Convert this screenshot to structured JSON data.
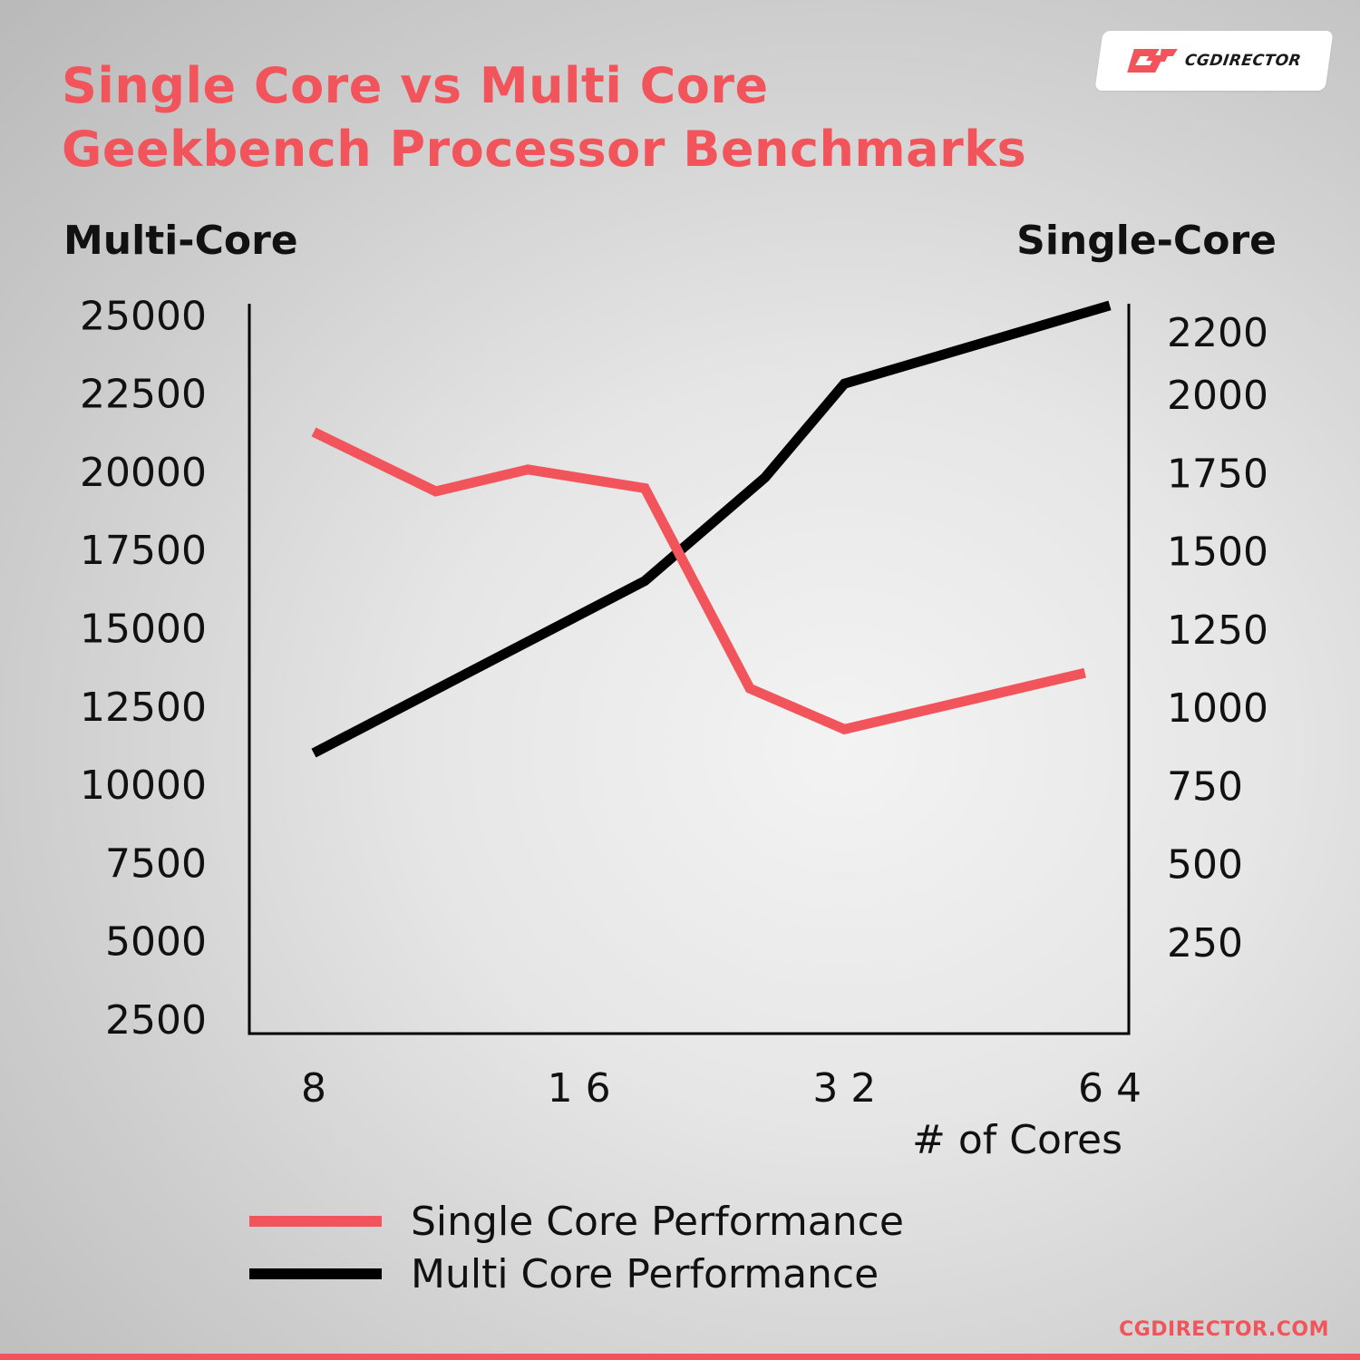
{
  "header": {
    "title_line1": "Single Core vs Multi Core",
    "title_line2": "Geekbench Processor Benchmarks",
    "logo_text": "CGDIRECTOR"
  },
  "footer": {
    "url": "CGDIRECTOR.COM"
  },
  "colors": {
    "single": "#f1545a",
    "multi": "#000000",
    "accent": "#f1545a"
  },
  "icons": {
    "logo": "cgdirector-logo-icon"
  },
  "chart_data": {
    "type": "line",
    "title": "Single Core vs Multi Core Geekbench Processor Benchmarks",
    "xlabel": "# of Cores",
    "x_ticks": [
      8,
      16,
      32,
      64
    ],
    "x_tick_labels": [
      "8",
      "1 6",
      "3 2",
      "6 4"
    ],
    "left_axis": {
      "label": "Multi-Core",
      "ticks": [
        2500,
        5000,
        7500,
        10000,
        12500,
        15000,
        17500,
        20000,
        22500,
        25000
      ],
      "ylim": [
        2500,
        25000
      ]
    },
    "right_axis": {
      "label": "Single-Core",
      "ticks": [
        250,
        500,
        750,
        1000,
        1250,
        1500,
        1750,
        2000,
        2200
      ],
      "ylim": [
        0,
        2250
      ]
    },
    "series": [
      {
        "name": "Single Core Performance",
        "axis": "right",
        "color": "#f1545a",
        "points": [
          {
            "x": 8,
            "y": 1880
          },
          {
            "x": 11,
            "y": 1690
          },
          {
            "x": 14,
            "y": 1760
          },
          {
            "x": 19,
            "y": 1700
          },
          {
            "x": 25,
            "y": 1060
          },
          {
            "x": 32,
            "y": 930
          },
          {
            "x": 60,
            "y": 1110
          }
        ]
      },
      {
        "name": "Multi Core Performance",
        "axis": "left",
        "color": "#000000",
        "points": [
          {
            "x": 8,
            "y": 11000
          },
          {
            "x": 19,
            "y": 16500
          },
          {
            "x": 26,
            "y": 19800
          },
          {
            "x": 32,
            "y": 22800
          },
          {
            "x": 64,
            "y": 25300
          }
        ]
      }
    ],
    "legend_position": "bottom",
    "grid": false
  }
}
